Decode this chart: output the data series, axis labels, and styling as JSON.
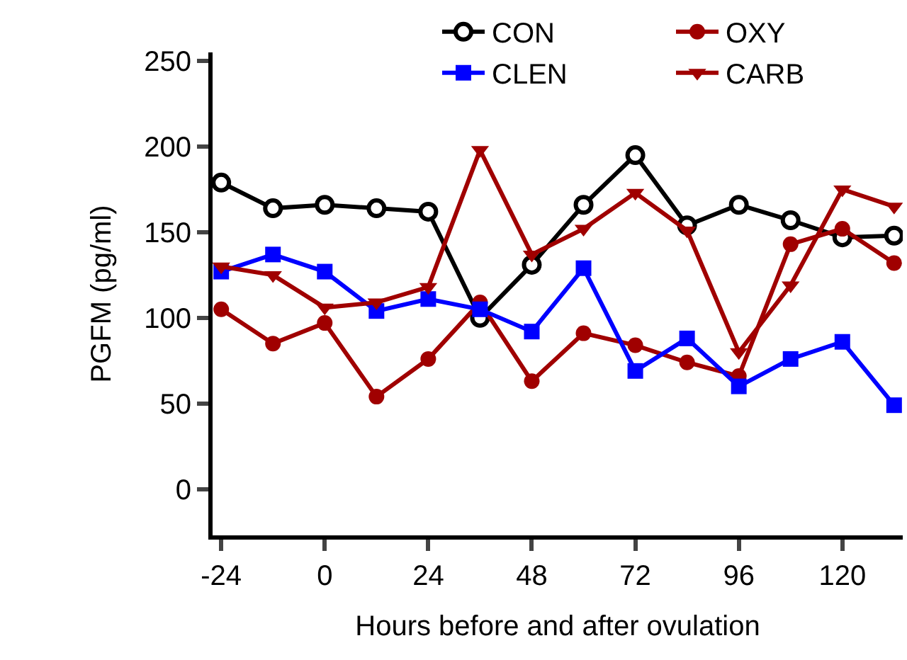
{
  "chart_data": {
    "type": "line",
    "xlabel": "Hours before and after ovulation",
    "ylabel": "PGFM (pg/ml)",
    "x": [
      -24,
      -12,
      0,
      12,
      24,
      36,
      48,
      60,
      72,
      84,
      96,
      108,
      120,
      132
    ],
    "xlim": [
      -26,
      134
    ],
    "xticks": [
      -24,
      0,
      24,
      48,
      72,
      96,
      120
    ],
    "ylim": [
      -27,
      255
    ],
    "yticks": [
      0,
      50,
      100,
      150,
      200,
      250
    ],
    "grid": false,
    "legend": "top right",
    "series": [
      {
        "name": "CON",
        "color": "#000000",
        "marker": "circle-open",
        "values": [
          179,
          164,
          166,
          164,
          162,
          100,
          131,
          166,
          195,
          154,
          166,
          157,
          147,
          148
        ]
      },
      {
        "name": "OXY",
        "color": "#a00000",
        "marker": "circle",
        "values": [
          105,
          85,
          97,
          54,
          76,
          109,
          63,
          91,
          84,
          74,
          66,
          143,
          152,
          132
        ]
      },
      {
        "name": "CLEN",
        "color": "#0000ff",
        "marker": "square",
        "values": [
          127,
          137,
          127,
          104,
          111,
          105,
          92,
          129,
          69,
          88,
          60,
          76,
          86,
          49
        ]
      },
      {
        "name": "CARB",
        "color": "#a00000",
        "marker": "triangle",
        "values": [
          130,
          125,
          106,
          109,
          118,
          198,
          137,
          152,
          173,
          151,
          80,
          119,
          175,
          165
        ]
      }
    ]
  }
}
